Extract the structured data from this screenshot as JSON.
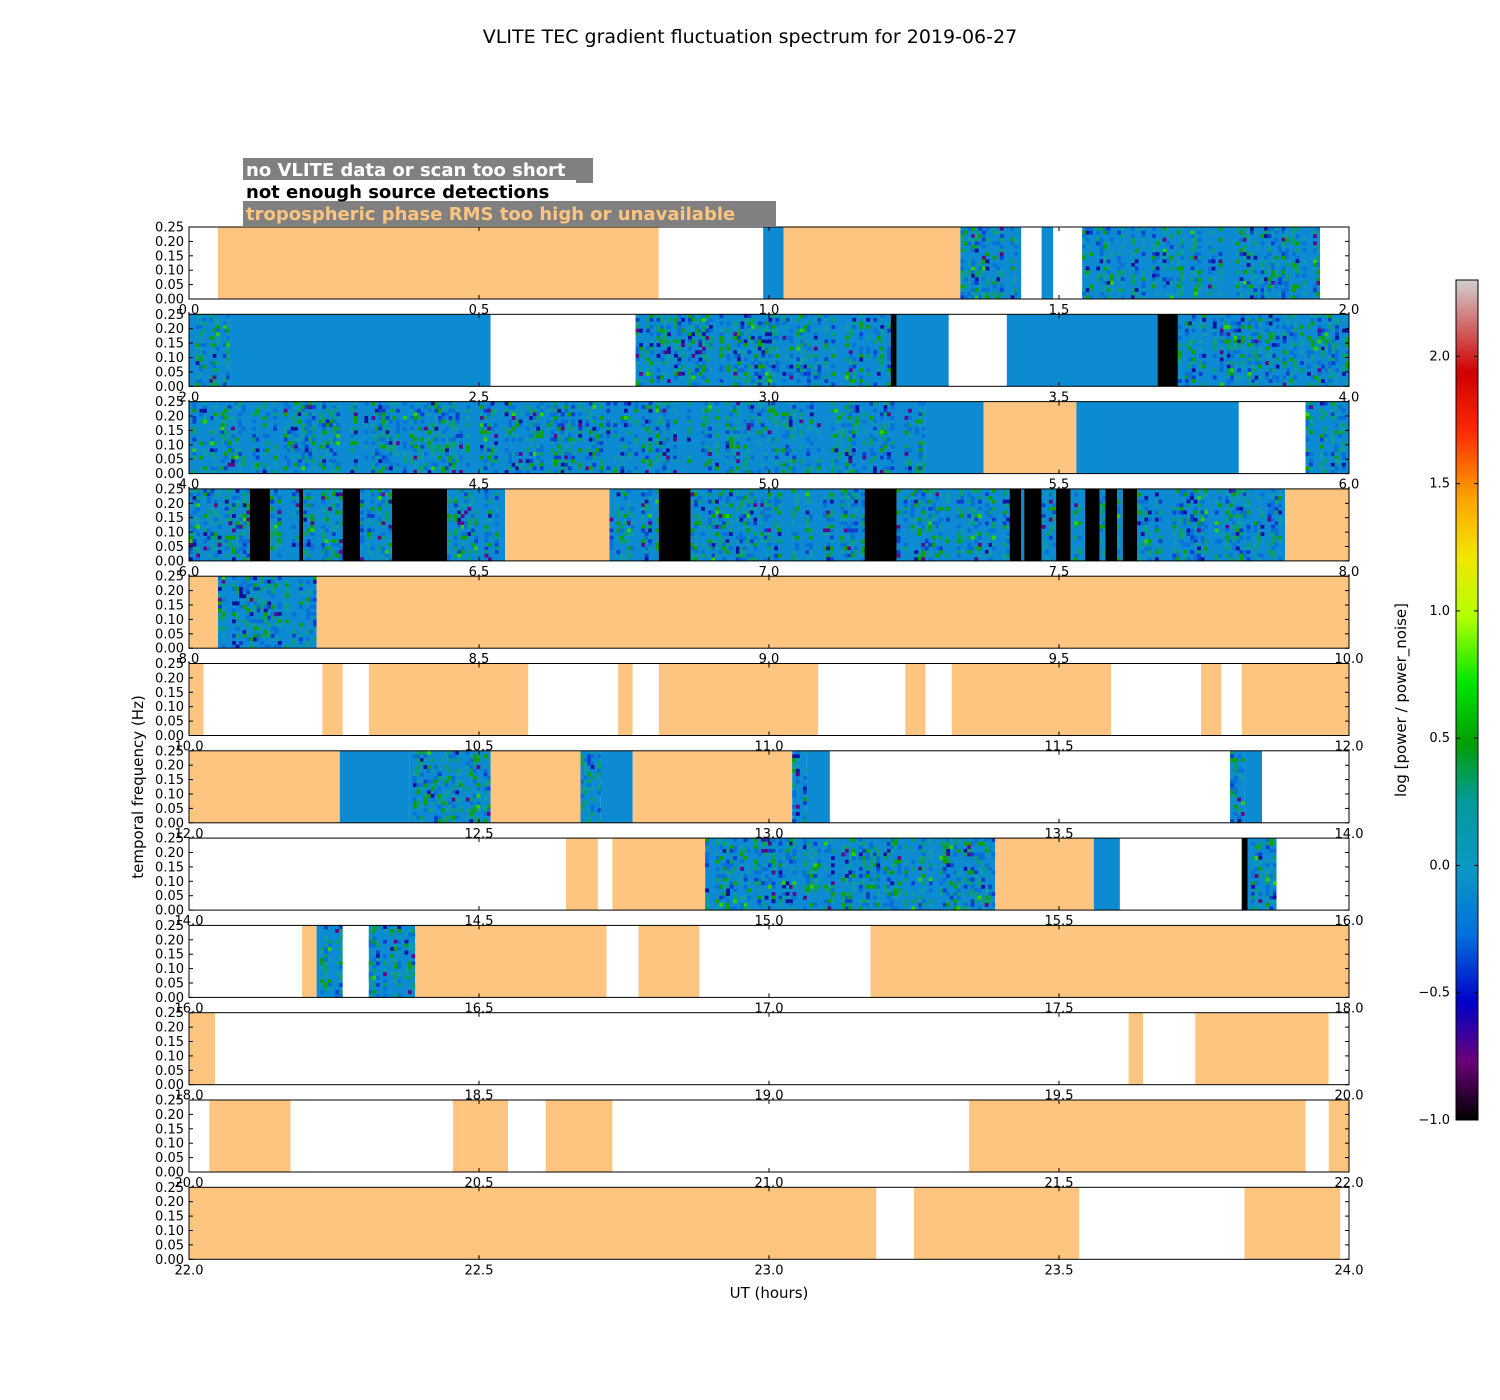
{
  "chart_data": {
    "type": "heatmap",
    "title": "VLITE TEC gradient fluctuation spectrum for 2019-06-27",
    "xlabel": "UT (hours)",
    "ylabel": "temporal frequency (Hz)",
    "colorbar_label": "log [power / power_noise]",
    "colorbar": {
      "range": [
        -1.0,
        2.3
      ],
      "ticks": [
        "−1.0",
        "−0.5",
        "0.0",
        "0.5",
        "1.0",
        "1.5",
        "2.0"
      ],
      "tick_values": [
        -1.0,
        -0.5,
        0.0,
        0.5,
        1.0,
        1.5,
        2.0
      ]
    },
    "colors": {
      "no_data": "#ffffff",
      "not_enough_detections": "#000000",
      "tropo_rms": "#fdc57f",
      "legend_box": "#808080",
      "field_base": "#0c8ad2"
    },
    "legend": [
      {
        "label": "no VLITE data or scan too short",
        "color": "#ffffff"
      },
      {
        "label": "not enough source detections",
        "color": "#000000"
      },
      {
        "label": "tropospheric phase RMS too high or unavailable",
        "color": "#fdc57f"
      }
    ],
    "ylim": [
      0,
      0.25
    ],
    "yticks": [
      "0.00",
      "0.05",
      "0.10",
      "0.15",
      "0.20",
      "0.25"
    ],
    "panels": [
      {
        "xlim": [
          0,
          2
        ],
        "xticks": [
          "0.0",
          "0.5",
          "1.0",
          "1.5",
          "2.0"
        ],
        "segments": [
          {
            "k": "w",
            "a": 0.0,
            "b": 0.05
          },
          {
            "k": "o",
            "a": 0.05,
            "b": 0.81
          },
          {
            "k": "w",
            "a": 0.81,
            "b": 0.99
          },
          {
            "k": "s",
            "a": 0.99,
            "b": 1.025
          },
          {
            "k": "o",
            "a": 1.025,
            "b": 1.33
          },
          {
            "k": "n",
            "a": 1.33,
            "b": 1.435
          },
          {
            "k": "w",
            "a": 1.435,
            "b": 1.47
          },
          {
            "k": "s",
            "a": 1.47,
            "b": 1.49
          },
          {
            "k": "w",
            "a": 1.49,
            "b": 1.54
          },
          {
            "k": "n",
            "a": 1.54,
            "b": 1.95
          },
          {
            "k": "w",
            "a": 1.95,
            "b": 2.0
          }
        ]
      },
      {
        "xlim": [
          2,
          4
        ],
        "xticks": [
          "2.0",
          "2.5",
          "3.0",
          "3.5",
          "4.0"
        ],
        "segments": [
          {
            "k": "n",
            "a": 2.0,
            "b": 2.07
          },
          {
            "k": "s",
            "a": 2.07,
            "b": 2.52
          },
          {
            "k": "w",
            "a": 2.52,
            "b": 2.77
          },
          {
            "k": "n",
            "a": 2.77,
            "b": 3.21
          },
          {
            "k": "b",
            "a": 3.21,
            "b": 3.22
          },
          {
            "k": "s",
            "a": 3.22,
            "b": 3.31
          },
          {
            "k": "w",
            "a": 3.31,
            "b": 3.41
          },
          {
            "k": "s",
            "a": 3.41,
            "b": 3.67
          },
          {
            "k": "b",
            "a": 3.67,
            "b": 3.705
          },
          {
            "k": "n",
            "a": 3.705,
            "b": 4.0
          }
        ]
      },
      {
        "xlim": [
          4,
          6
        ],
        "xticks": [
          "4.0",
          "4.5",
          "5.0",
          "5.5",
          "6.0"
        ],
        "segments": [
          {
            "k": "n",
            "a": 4.0,
            "b": 5.27
          },
          {
            "k": "s",
            "a": 5.27,
            "b": 5.37
          },
          {
            "k": "o",
            "a": 5.37,
            "b": 5.53
          },
          {
            "k": "s",
            "a": 5.53,
            "b": 5.81
          },
          {
            "k": "w",
            "a": 5.81,
            "b": 5.925
          },
          {
            "k": "n",
            "a": 5.925,
            "b": 6.0
          }
        ]
      },
      {
        "xlim": [
          6,
          8
        ],
        "xticks": [
          "6.0",
          "6.5",
          "7.0",
          "7.5",
          "8.0"
        ],
        "segments": [
          {
            "k": "n",
            "a": 6.0,
            "b": 6.105
          },
          {
            "k": "b",
            "a": 6.105,
            "b": 6.14
          },
          {
            "k": "n",
            "a": 6.14,
            "b": 6.19
          },
          {
            "k": "b",
            "a": 6.19,
            "b": 6.197
          },
          {
            "k": "n",
            "a": 6.197,
            "b": 6.265
          },
          {
            "k": "b",
            "a": 6.265,
            "b": 6.295
          },
          {
            "k": "n",
            "a": 6.295,
            "b": 6.35
          },
          {
            "k": "b",
            "a": 6.35,
            "b": 6.445
          },
          {
            "k": "n",
            "a": 6.445,
            "b": 6.545
          },
          {
            "k": "o",
            "a": 6.545,
            "b": 6.725
          },
          {
            "k": "n",
            "a": 6.725,
            "b": 6.81
          },
          {
            "k": "b",
            "a": 6.81,
            "b": 6.865
          },
          {
            "k": "n",
            "a": 6.865,
            "b": 7.165
          },
          {
            "k": "b",
            "a": 7.165,
            "b": 7.22
          },
          {
            "k": "n",
            "a": 7.22,
            "b": 7.415
          },
          {
            "k": "b",
            "a": 7.415,
            "b": 7.435
          },
          {
            "k": "n",
            "a": 7.435,
            "b": 7.44
          },
          {
            "k": "b",
            "a": 7.44,
            "b": 7.47
          },
          {
            "k": "n",
            "a": 7.47,
            "b": 7.495
          },
          {
            "k": "b",
            "a": 7.495,
            "b": 7.52
          },
          {
            "k": "n",
            "a": 7.52,
            "b": 7.545
          },
          {
            "k": "b",
            "a": 7.545,
            "b": 7.57
          },
          {
            "k": "n",
            "a": 7.57,
            "b": 7.58
          },
          {
            "k": "b",
            "a": 7.58,
            "b": 7.6
          },
          {
            "k": "n",
            "a": 7.6,
            "b": 7.61
          },
          {
            "k": "b",
            "a": 7.61,
            "b": 7.635
          },
          {
            "k": "n",
            "a": 7.635,
            "b": 7.89
          },
          {
            "k": "o",
            "a": 7.89,
            "b": 8.0
          }
        ]
      },
      {
        "xlim": [
          8,
          10
        ],
        "xticks": [
          "8.0",
          "8.5",
          "9.0",
          "9.5",
          "10.0"
        ],
        "segments": [
          {
            "k": "o",
            "a": 8.0,
            "b": 8.05
          },
          {
            "k": "n",
            "a": 8.05,
            "b": 8.22
          },
          {
            "k": "o",
            "a": 8.22,
            "b": 10.0
          }
        ]
      },
      {
        "xlim": [
          10,
          12
        ],
        "xticks": [
          "10.0",
          "10.5",
          "11.0",
          "11.5",
          "12.0"
        ],
        "segments": [
          {
            "k": "o",
            "a": 10.0,
            "b": 10.025
          },
          {
            "k": "w",
            "a": 10.025,
            "b": 10.23
          },
          {
            "k": "o",
            "a": 10.23,
            "b": 10.265
          },
          {
            "k": "w",
            "a": 10.265,
            "b": 10.31
          },
          {
            "k": "o",
            "a": 10.31,
            "b": 10.585
          },
          {
            "k": "w",
            "a": 10.585,
            "b": 10.74
          },
          {
            "k": "o",
            "a": 10.74,
            "b": 10.765
          },
          {
            "k": "w",
            "a": 10.765,
            "b": 10.81
          },
          {
            "k": "o",
            "a": 10.81,
            "b": 11.085
          },
          {
            "k": "w",
            "a": 11.085,
            "b": 11.235
          },
          {
            "k": "o",
            "a": 11.235,
            "b": 11.27
          },
          {
            "k": "w",
            "a": 11.27,
            "b": 11.315
          },
          {
            "k": "o",
            "a": 11.315,
            "b": 11.59
          },
          {
            "k": "w",
            "a": 11.59,
            "b": 11.745
          },
          {
            "k": "o",
            "a": 11.745,
            "b": 11.78
          },
          {
            "k": "w",
            "a": 11.78,
            "b": 11.815
          },
          {
            "k": "o",
            "a": 11.815,
            "b": 12.0
          }
        ]
      },
      {
        "xlim": [
          12,
          14
        ],
        "xticks": [
          "12.0",
          "12.5",
          "13.0",
          "13.5",
          "14.0"
        ],
        "segments": [
          {
            "k": "o",
            "a": 12.0,
            "b": 12.26
          },
          {
            "k": "s",
            "a": 12.26,
            "b": 12.38
          },
          {
            "k": "n",
            "a": 12.38,
            "b": 12.52
          },
          {
            "k": "o",
            "a": 12.52,
            "b": 12.675
          },
          {
            "k": "n",
            "a": 12.675,
            "b": 12.71
          },
          {
            "k": "s",
            "a": 12.71,
            "b": 12.765
          },
          {
            "k": "o",
            "a": 12.765,
            "b": 13.04
          },
          {
            "k": "n",
            "a": 13.04,
            "b": 13.065
          },
          {
            "k": "s",
            "a": 13.065,
            "b": 13.105
          },
          {
            "k": "w",
            "a": 13.105,
            "b": 13.795
          },
          {
            "k": "n",
            "a": 13.795,
            "b": 13.82
          },
          {
            "k": "s",
            "a": 13.82,
            "b": 13.85
          },
          {
            "k": "w",
            "a": 13.85,
            "b": 14.0
          }
        ]
      },
      {
        "xlim": [
          14,
          16
        ],
        "xticks": [
          "14.0",
          "14.5",
          "15.0",
          "15.5",
          "16.0"
        ],
        "segments": [
          {
            "k": "w",
            "a": 14.0,
            "b": 14.65
          },
          {
            "k": "o",
            "a": 14.65,
            "b": 14.705
          },
          {
            "k": "w",
            "a": 14.705,
            "b": 14.73
          },
          {
            "k": "o",
            "a": 14.73,
            "b": 14.89
          },
          {
            "k": "n",
            "a": 14.89,
            "b": 15.39
          },
          {
            "k": "o",
            "a": 15.39,
            "b": 15.56
          },
          {
            "k": "s",
            "a": 15.56,
            "b": 15.605
          },
          {
            "k": "w",
            "a": 15.605,
            "b": 15.815
          },
          {
            "k": "b",
            "a": 15.815,
            "b": 15.825
          },
          {
            "k": "n",
            "a": 15.825,
            "b": 15.875
          },
          {
            "k": "w",
            "a": 15.875,
            "b": 16.0
          }
        ]
      },
      {
        "xlim": [
          16,
          18
        ],
        "xticks": [
          "16.0",
          "16.5",
          "17.0",
          "17.5",
          "18.0"
        ],
        "segments": [
          {
            "k": "w",
            "a": 16.0,
            "b": 16.195
          },
          {
            "k": "o",
            "a": 16.195,
            "b": 16.22
          },
          {
            "k": "n",
            "a": 16.22,
            "b": 16.265
          },
          {
            "k": "w",
            "a": 16.265,
            "b": 16.31
          },
          {
            "k": "n",
            "a": 16.31,
            "b": 16.39
          },
          {
            "k": "o",
            "a": 16.39,
            "b": 16.72
          },
          {
            "k": "w",
            "a": 16.72,
            "b": 16.775
          },
          {
            "k": "o",
            "a": 16.775,
            "b": 16.88
          },
          {
            "k": "w",
            "a": 16.88,
            "b": 17.175
          },
          {
            "k": "o",
            "a": 17.175,
            "b": 18.0
          }
        ]
      },
      {
        "xlim": [
          18,
          20
        ],
        "xticks": [
          "18.0",
          "18.5",
          "19.0",
          "19.5",
          "20.0"
        ],
        "segments": [
          {
            "k": "o",
            "a": 18.0,
            "b": 18.045
          },
          {
            "k": "w",
            "a": 18.045,
            "b": 19.62
          },
          {
            "k": "o",
            "a": 19.62,
            "b": 19.645
          },
          {
            "k": "w",
            "a": 19.645,
            "b": 19.735
          },
          {
            "k": "o",
            "a": 19.735,
            "b": 19.965
          },
          {
            "k": "w",
            "a": 19.965,
            "b": 20.0
          }
        ]
      },
      {
        "xlim": [
          20,
          22
        ],
        "xticks": [
          "20.0",
          "20.5",
          "21.0",
          "21.5",
          "22.0"
        ],
        "segments": [
          {
            "k": "w",
            "a": 20.0,
            "b": 20.035
          },
          {
            "k": "o",
            "a": 20.035,
            "b": 20.175
          },
          {
            "k": "w",
            "a": 20.175,
            "b": 20.455
          },
          {
            "k": "o",
            "a": 20.455,
            "b": 20.55
          },
          {
            "k": "w",
            "a": 20.55,
            "b": 20.615
          },
          {
            "k": "o",
            "a": 20.615,
            "b": 20.73
          },
          {
            "k": "w",
            "a": 20.73,
            "b": 21.345
          },
          {
            "k": "o",
            "a": 21.345,
            "b": 21.925
          },
          {
            "k": "w",
            "a": 21.925,
            "b": 21.965
          },
          {
            "k": "o",
            "a": 21.965,
            "b": 22.0
          }
        ]
      },
      {
        "xlim": [
          22,
          24
        ],
        "xticks": [
          "22.0",
          "22.5",
          "23.0",
          "23.5",
          "24.0"
        ],
        "segments": [
          {
            "k": "o",
            "a": 22.0,
            "b": 23.185
          },
          {
            "k": "w",
            "a": 23.185,
            "b": 23.25
          },
          {
            "k": "o",
            "a": 23.25,
            "b": 23.535
          },
          {
            "k": "w",
            "a": 23.535,
            "b": 23.82
          },
          {
            "k": "o",
            "a": 23.82,
            "b": 23.985
          },
          {
            "k": "w",
            "a": 23.985,
            "b": 24.0
          }
        ]
      }
    ]
  }
}
